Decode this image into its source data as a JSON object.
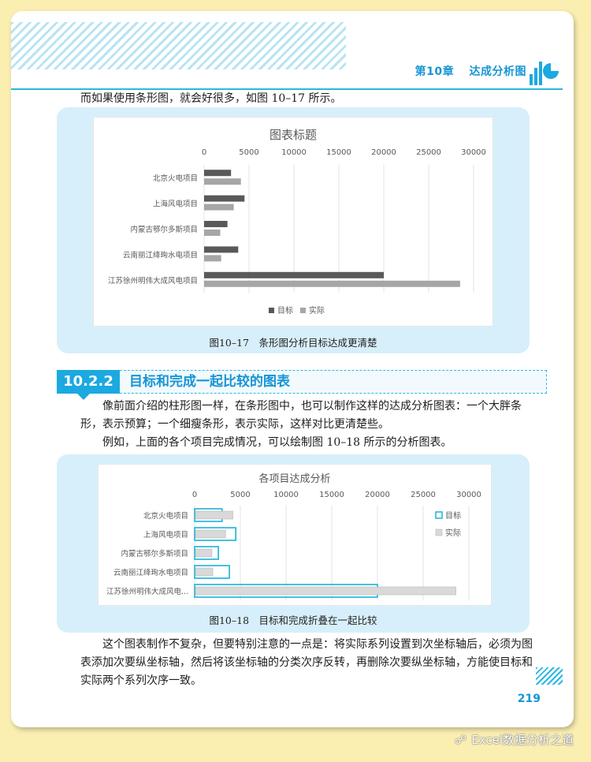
{
  "header": {
    "chapter": "第10章",
    "title": "达成分析图"
  },
  "intro_line": "而如果使用条形图，就会好很多，如图 10–17 所示。",
  "figure1": {
    "caption": "图10–17　条形图分析目标达成更清楚"
  },
  "section": {
    "number": "10.2.2",
    "title": "目标和完成一起比较的图表"
  },
  "paragraphs": [
    "像前面介绍的柱形图一样，在条形图中，也可以制作这样的达成分析图表：一个大胖条形，表示预算；一个细瘦条形，表示实际，这样对比更清楚些。",
    "例如，上面的各个项目完成情况，可以绘制图 10–18 所示的分析图表。"
  ],
  "figure2": {
    "caption": "图10–18　目标和完成折叠在一起比较"
  },
  "closing": "这个图表制作不复杂，但要特别注意的一点是：将实际系列设置到次坐标轴后，必须为图表添加次要纵坐标轴，然后将该坐标轴的分类次序反转，再删除次要纵坐标轴，方能使目标和实际两个系列次序一致。",
  "page_number": "219",
  "watermark": "Excel数据分析之道",
  "colors": {
    "accent": "#1ba9e0",
    "target_dark": "#595959",
    "actual_gray": "#a6a6a6",
    "target_outline": "#18b2d8",
    "actual_fill": "#d9d9d9"
  },
  "chart_data": [
    {
      "type": "bar",
      "orientation": "horizontal",
      "title": "图表标题",
      "categories": [
        "北京火电项目",
        "上海风电项目",
        "内蒙古鄂尔多斯项目",
        "云南丽江绛珣水电项目",
        "江苏徐州明伟大成风电项目"
      ],
      "series": [
        {
          "name": "目标",
          "values": [
            3000,
            4500,
            2600,
            3800,
            20000
          ]
        },
        {
          "name": "实际",
          "values": [
            4100,
            3300,
            1800,
            1900,
            28500
          ]
        }
      ],
      "xlim": [
        0,
        30000
      ],
      "ticks": [
        "0",
        "5000",
        "10000",
        "15000",
        "20000",
        "25000",
        "30000"
      ],
      "axis_position": "top",
      "grid": true,
      "legend": "bottom"
    },
    {
      "type": "bar",
      "orientation": "horizontal",
      "title": "各项目达成分析",
      "categories": [
        "北京火电项目",
        "上海风电项目",
        "内蒙古鄂尔多斯项目",
        "云南丽江绛珣水电项目",
        "江苏徐州明伟大成风电..."
      ],
      "series": [
        {
          "name": "目标",
          "values": [
            3000,
            4500,
            2600,
            3800,
            20000
          ]
        },
        {
          "name": "实际",
          "values": [
            4100,
            3300,
            1800,
            1900,
            28500
          ]
        }
      ],
      "xlim": [
        0,
        30000
      ],
      "ticks": [
        "0",
        "5000",
        "10000",
        "15000",
        "20000",
        "25000",
        "30000"
      ],
      "axis_position": "top",
      "grid": true,
      "legend": "right"
    }
  ]
}
